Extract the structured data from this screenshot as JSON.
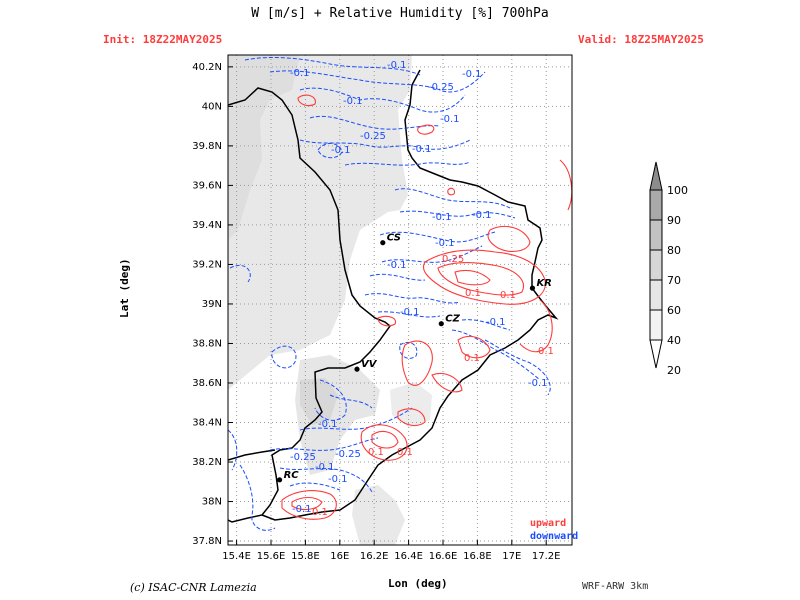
{
  "title": "W [m/s] + Relative Humidity [%] 700hPa",
  "init": "Init: 18Z22MAY2025",
  "valid": "Valid: 18Z25MAY2025",
  "axes": {
    "xlabel": "Lon (deg)",
    "ylabel": "Lat (deg)",
    "xticks": [
      "15.4E",
      "15.6E",
      "15.8E",
      "16E",
      "16.2E",
      "16.4E",
      "16.6E",
      "16.8E",
      "17E",
      "17.2E"
    ],
    "yticks": [
      "37.8N",
      "38N",
      "38.2N",
      "38.4N",
      "38.6N",
      "38.8N",
      "39N",
      "39.2N",
      "39.4N",
      "39.6N",
      "39.8N",
      "40N",
      "40.2N"
    ],
    "lon_range": [
      15.35,
      17.35
    ],
    "lat_range": [
      37.78,
      40.26
    ]
  },
  "colorbar": {
    "levels": [
      "20",
      "40",
      "60",
      "70",
      "80",
      "90",
      "100"
    ],
    "colors": [
      "#ffffff",
      "#f3f3f3",
      "#e6e6e6",
      "#d6d6d6",
      "#c2c2c2",
      "#a9a9a9",
      "#8c8c8c"
    ]
  },
  "cities": [
    {
      "name": "CS",
      "lon": 16.25,
      "lat": 39.31
    },
    {
      "name": "KR",
      "lon": 17.12,
      "lat": 39.08
    },
    {
      "name": "CZ",
      "lon": 16.59,
      "lat": 38.9
    },
    {
      "name": "VV",
      "lon": 16.1,
      "lat": 38.67
    },
    {
      "name": "RC",
      "lon": 15.65,
      "lat": 38.11
    }
  ],
  "contour_labels": {
    "downward": [
      "-0.1",
      "-0.1",
      "-0.1",
      "-0.25",
      "-0.1",
      "-0.1",
      "-0.25",
      "-0.1",
      "-0.1",
      "-0.1",
      "-0.1",
      "-0.1",
      "-0.1",
      "-0.1",
      "-0.1",
      "-0.1",
      "-0.1",
      "-0.25",
      "-0.25",
      "-0.1",
      "-0.1",
      "-0.1"
    ],
    "upward": [
      "0.25",
      "0.1",
      "0.1",
      "0.1",
      "0.1",
      "0.1",
      "0.1",
      "0.1"
    ]
  },
  "legend": {
    "upward": "upward",
    "downward": "downward"
  },
  "credit": "(c) ISAC-CNR Lamezia",
  "model": "WRF-ARW 3km",
  "colors": {
    "upward": "#ff3b3b",
    "downward": "#1a4dff",
    "coast": "#000000",
    "grid": "#9a9a9a",
    "header": "#ff3b3b"
  }
}
